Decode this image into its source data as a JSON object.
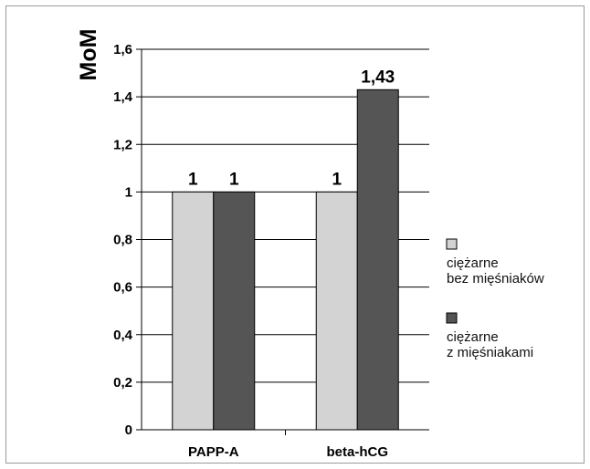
{
  "chart_data": {
    "type": "bar",
    "title": "",
    "xlabel": "",
    "ylabel": "MoM",
    "categories": [
      "PAPP-A",
      "beta-hCG"
    ],
    "series": [
      {
        "name": "ciężarne bez mięśniaków",
        "name_lines": [
          "ciężarne",
          "bez mięśniaków"
        ],
        "color": "#d3d3d3",
        "values": [
          1,
          1
        ],
        "labels": [
          "1",
          "1"
        ]
      },
      {
        "name": "ciężarne z mięśniakami",
        "name_lines": [
          "ciężarne",
          "z mięśniakami"
        ],
        "color": "#555555",
        "values": [
          1,
          1.43
        ],
        "labels": [
          "1",
          "1,43"
        ]
      }
    ],
    "ylim": [
      0,
      1.6
    ],
    "yticks": [
      0,
      0.2,
      0.4,
      0.6,
      0.8,
      1,
      1.2,
      1.4,
      1.6
    ],
    "ytick_labels": [
      "0",
      "0,2",
      "0,4",
      "0,6",
      "0,8",
      "1",
      "1,2",
      "1,4",
      "1,6"
    ],
    "grid": true,
    "legend_position": "right"
  }
}
